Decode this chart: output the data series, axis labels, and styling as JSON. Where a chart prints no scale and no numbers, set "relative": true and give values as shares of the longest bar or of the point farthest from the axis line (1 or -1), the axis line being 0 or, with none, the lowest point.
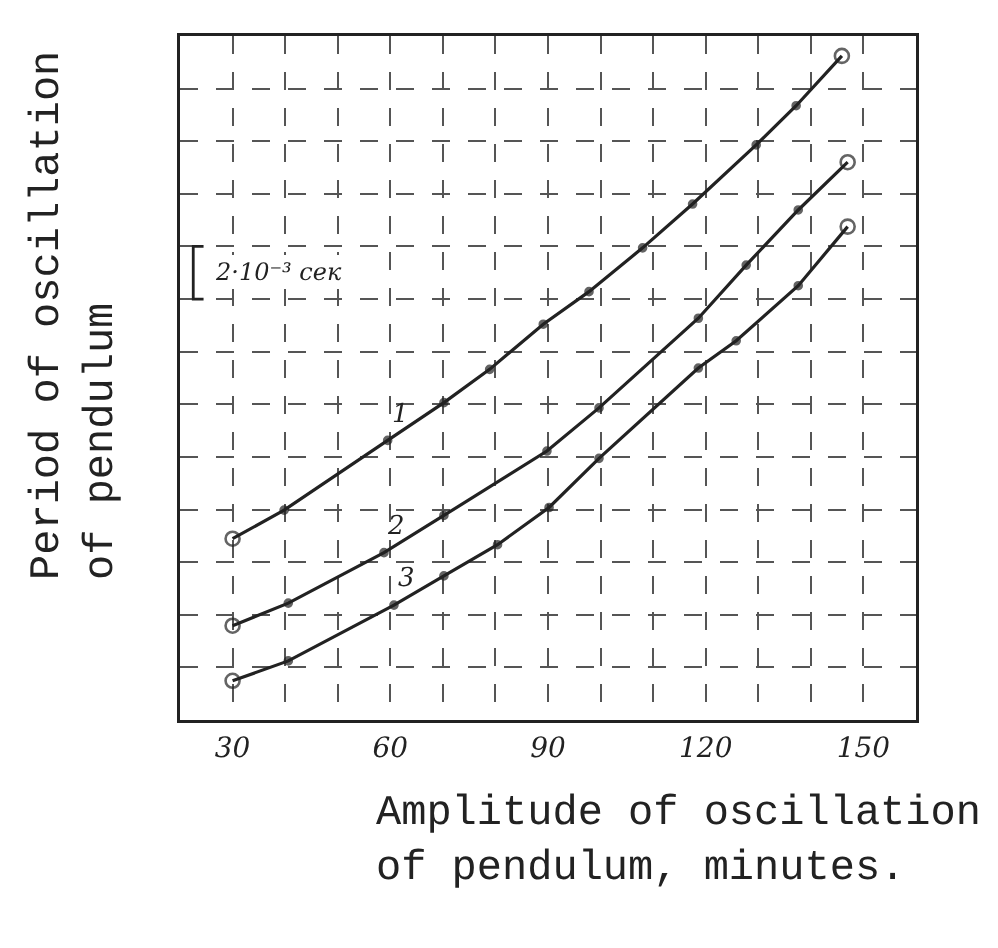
{
  "chart_data": {
    "type": "line",
    "xlabel": "Amplitude of oscillation\nof pendulum, minutes.",
    "ylabel": "Period of oscillation\nof pendulum",
    "annotations": [
      "2·10⁻³ сек"
    ],
    "relative": true,
    "xlim": [
      20,
      160
    ],
    "xticks": [
      30,
      {
        "value": 40,
        "label": null
      },
      {
        "value": 50,
        "label": null
      },
      60,
      {
        "value": 70,
        "label": null
      },
      {
        "value": 80,
        "label": null
      },
      90,
      {
        "value": 100,
        "label": null
      },
      {
        "value": 110,
        "label": null
      },
      120,
      {
        "value": 130,
        "label": null
      },
      {
        "value": 140,
        "label": null
      },
      150
    ],
    "grid": true,
    "legend": false,
    "marker": "circle",
    "line_style": "solid",
    "series": [
      {
        "name": "1",
        "color": "#222222",
        "x": [
          30,
          39.8,
          59.5,
          70.2,
          78.9,
          89.1,
          97.8,
          108,
          117.5,
          129.6,
          137.2,
          145.9
        ],
        "values": [
          0.273,
          0.316,
          0.421,
          0.478,
          0.528,
          0.596,
          0.645,
          0.711,
          0.777,
          0.866,
          0.925,
          1
        ]
      },
      {
        "name": "2",
        "color": "#222222",
        "x": [
          30,
          40.6,
          58.8,
          70.2,
          89.8,
          99.7,
          118.6,
          127.7,
          137.6,
          147
        ],
        "values": [
          0.142,
          0.176,
          0.252,
          0.308,
          0.405,
          0.47,
          0.605,
          0.685,
          0.768,
          0.84
        ]
      },
      {
        "name": "3",
        "color": "#222222",
        "x": [
          30,
          40.6,
          60.7,
          70.2,
          80.4,
          90.2,
          99.7,
          118.6,
          125.8,
          137.6,
          147
        ],
        "values": [
          0.059,
          0.089,
          0.173,
          0.217,
          0.264,
          0.32,
          0.394,
          0.53,
          0.571,
          0.654,
          0.743
        ]
      }
    ]
  }
}
